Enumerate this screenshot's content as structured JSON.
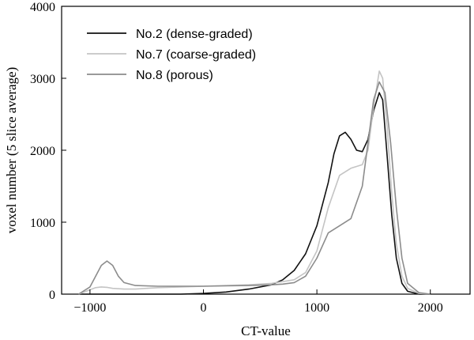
{
  "chart_data": {
    "type": "line",
    "xlabel": "CT-value",
    "ylabel": "voxel number (5 slice average)",
    "xlim": [
      -1250,
      2350
    ],
    "ylim": [
      0,
      4000
    ],
    "x_ticks": [
      -1000,
      0,
      1000,
      2000
    ],
    "x_tick_labels": [
      "−1000",
      "0",
      "1000",
      "2000"
    ],
    "y_ticks": [
      0,
      1000,
      2000,
      3000,
      4000
    ],
    "y_tick_labels": [
      "0",
      "1000",
      "2000",
      "3000",
      "4000"
    ],
    "grid": false,
    "legend_placement": "top-left",
    "series": [
      {
        "name": "No.2 (dense-graded)",
        "color": "#111111",
        "x": [
          -1100,
          -1000,
          -900,
          -800,
          -600,
          -400,
          -200,
          0,
          200,
          400,
          600,
          700,
          800,
          900,
          1000,
          1100,
          1150,
          1200,
          1250,
          1300,
          1350,
          1400,
          1450,
          1500,
          1550,
          1580,
          1620,
          1660,
          1700,
          1750,
          1800,
          1900,
          2000
        ],
        "y": [
          0,
          0,
          0,
          0,
          0,
          0,
          0,
          10,
          30,
          70,
          130,
          200,
          330,
          560,
          950,
          1550,
          1950,
          2200,
          2250,
          2150,
          2000,
          1980,
          2150,
          2550,
          2800,
          2700,
          1900,
          1100,
          500,
          150,
          40,
          0,
          0
        ]
      },
      {
        "name": "No.7 (coarse-graded)",
        "color": "#c4c4c4",
        "x": [
          -1100,
          -1000,
          -950,
          -900,
          -850,
          -800,
          -700,
          -600,
          -400,
          -200,
          0,
          200,
          400,
          600,
          800,
          900,
          1000,
          1100,
          1200,
          1300,
          1400,
          1450,
          1500,
          1550,
          1580,
          1620,
          1660,
          1700,
          1750,
          1800,
          1900,
          2000
        ],
        "y": [
          0,
          60,
          90,
          100,
          95,
          80,
          70,
          70,
          90,
          100,
          110,
          120,
          130,
          150,
          200,
          300,
          600,
          1200,
          1650,
          1750,
          1800,
          2000,
          2600,
          3100,
          3000,
          2300,
          1400,
          700,
          250,
          80,
          10,
          0
        ]
      },
      {
        "name": "No.8 (porous)",
        "color": "#8c8c8c",
        "x": [
          -1100,
          -1000,
          -950,
          -900,
          -850,
          -800,
          -750,
          -700,
          -600,
          -400,
          -200,
          0,
          200,
          400,
          600,
          700,
          800,
          900,
          1000,
          1100,
          1200,
          1300,
          1400,
          1450,
          1500,
          1550,
          1600,
          1650,
          1700,
          1750,
          1800,
          1900,
          2000
        ],
        "y": [
          0,
          100,
          250,
          400,
          460,
          400,
          250,
          160,
          120,
          110,
          110,
          110,
          115,
          120,
          130,
          140,
          160,
          250,
          500,
          850,
          950,
          1050,
          1500,
          2100,
          2700,
          2950,
          2800,
          2100,
          1200,
          500,
          150,
          20,
          0
        ]
      }
    ]
  }
}
